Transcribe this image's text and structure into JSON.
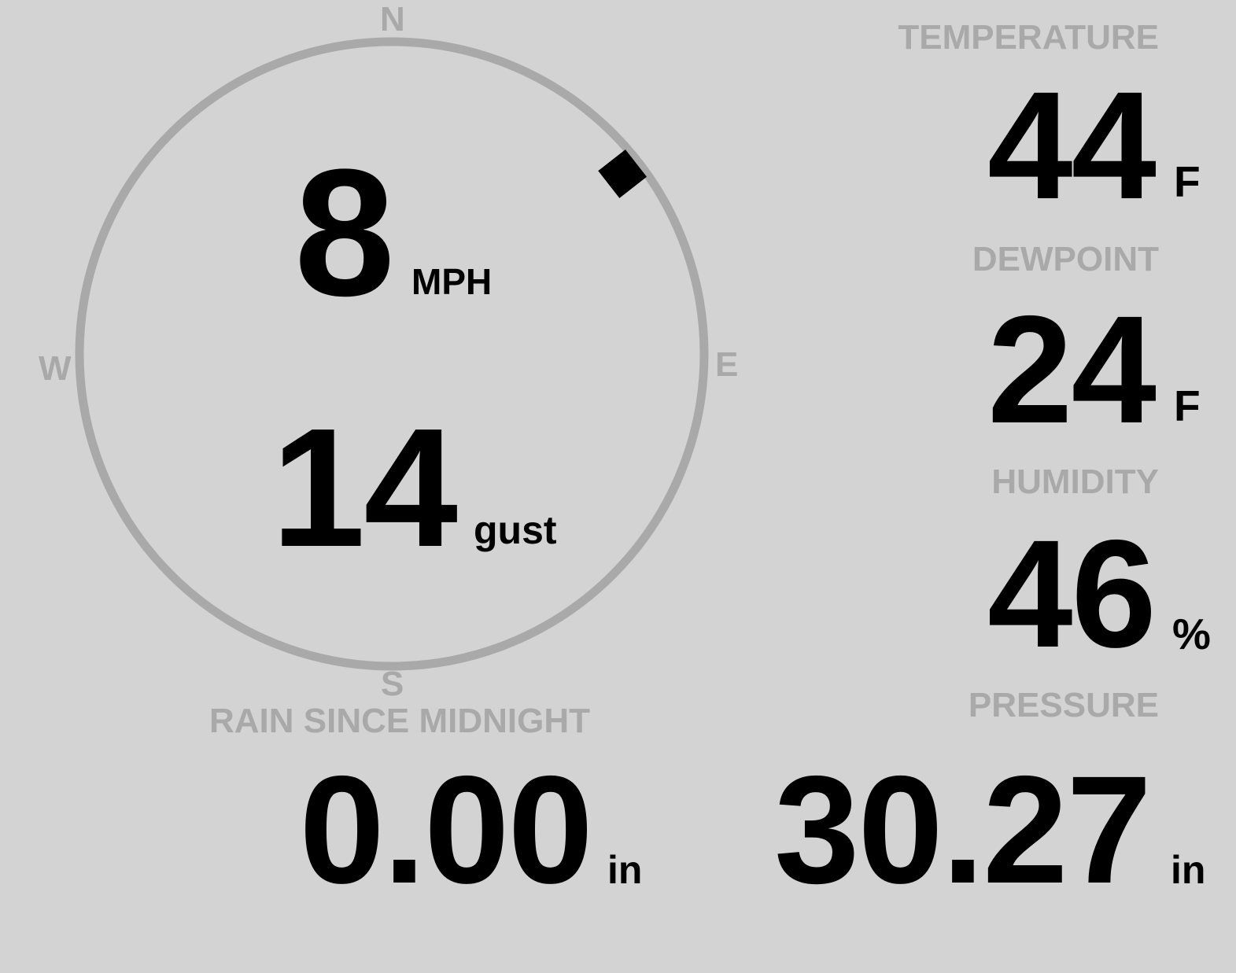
{
  "colors": {
    "background": "#d3d3d3",
    "label": "#a9a9a9",
    "value": "#000000",
    "compass": "#a9a9a9"
  },
  "wind": {
    "speed": "8",
    "speed_unit": "MPH",
    "gust": "14",
    "gust_unit": "gust",
    "direction_deg": 52,
    "compass": {
      "n": "N",
      "e": "E",
      "s": "S",
      "w": "W"
    }
  },
  "temperature": {
    "label": "TEMPERATURE",
    "value": "44",
    "unit": "F"
  },
  "dewpoint": {
    "label": "DEWPOINT",
    "value": "24",
    "unit": "F"
  },
  "humidity": {
    "label": "HUMIDITY",
    "value": "46",
    "unit": "%"
  },
  "rain": {
    "label": "RAIN SINCE MIDNIGHT",
    "value": "0.00",
    "unit": "in"
  },
  "pressure": {
    "label": "PRESSURE",
    "value": "30.27",
    "unit": "in"
  }
}
